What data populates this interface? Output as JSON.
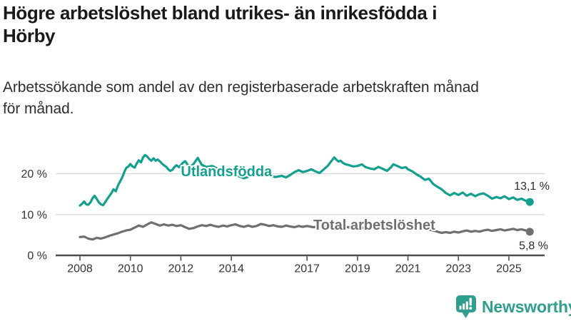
{
  "header": {
    "title": "Högre arbetslöshet bland utrikes- än inrikesfödda i Hörby",
    "title_lines": [
      "Högre arbetslöshet bland utrikes- än inrikesfödda i",
      "Hörby"
    ],
    "subtitle": "Arbetssökande som andel av den registerbaserade arbetskraften månad för månad.",
    "subtitle_lines": [
      "Arbetssökande som andel av den registerbaserade arbetskraften månad",
      "för månad."
    ]
  },
  "chart_data": {
    "type": "line",
    "title": "",
    "xlabel": "",
    "ylabel": "",
    "x_unit": "year (monthly observations)",
    "y_unit": "percent of registered labour force",
    "xlim": [
      2007.5,
      2026.5
    ],
    "ylim": [
      0,
      26
    ],
    "grid": "horizontal",
    "legend_position": "inline-labels",
    "x_ticks": [
      {
        "value": 2008,
        "label": "2008"
      },
      {
        "value": 2010,
        "label": "2010"
      },
      {
        "value": 2012,
        "label": "2012"
      },
      {
        "value": 2014,
        "label": "2014"
      },
      {
        "value": 2017,
        "label": "2017"
      },
      {
        "value": 2019,
        "label": "2019"
      },
      {
        "value": 2021,
        "label": "2021"
      },
      {
        "value": 2023,
        "label": "2023"
      },
      {
        "value": 2025,
        "label": "2025"
      }
    ],
    "y_ticks": [
      {
        "value": 0,
        "label": "0 %"
      },
      {
        "value": 10,
        "label": "10 %"
      },
      {
        "value": 20,
        "label": "20 %"
      }
    ],
    "series": [
      {
        "name": "Utlandsfödda",
        "color": "#13a08f",
        "end_value": 13.1,
        "end_label": "13,1 %",
        "label_anchor": {
          "x": 2012.0,
          "y": 19.4
        },
        "points": [
          [
            2008.0,
            12.2
          ],
          [
            2008.08,
            12.6
          ],
          [
            2008.17,
            13.2
          ],
          [
            2008.25,
            12.5
          ],
          [
            2008.33,
            12.4
          ],
          [
            2008.42,
            13.0
          ],
          [
            2008.5,
            14.0
          ],
          [
            2008.58,
            14.6
          ],
          [
            2008.67,
            13.8
          ],
          [
            2008.75,
            13.0
          ],
          [
            2008.83,
            12.5
          ],
          [
            2008.92,
            12.3
          ],
          [
            2009.0,
            13.0
          ],
          [
            2009.08,
            13.8
          ],
          [
            2009.17,
            14.6
          ],
          [
            2009.25,
            15.3
          ],
          [
            2009.33,
            16.2
          ],
          [
            2009.42,
            15.7
          ],
          [
            2009.5,
            17.0
          ],
          [
            2009.58,
            18.0
          ],
          [
            2009.67,
            19.0
          ],
          [
            2009.75,
            20.3
          ],
          [
            2009.83,
            21.4
          ],
          [
            2009.92,
            21.8
          ],
          [
            2010.0,
            22.4
          ],
          [
            2010.08,
            21.8
          ],
          [
            2010.17,
            21.5
          ],
          [
            2010.25,
            22.5
          ],
          [
            2010.33,
            23.3
          ],
          [
            2010.42,
            22.8
          ],
          [
            2010.5,
            24.0
          ],
          [
            2010.58,
            24.6
          ],
          [
            2010.67,
            24.2
          ],
          [
            2010.75,
            23.6
          ],
          [
            2010.83,
            23.2
          ],
          [
            2010.92,
            23.8
          ],
          [
            2011.0,
            23.2
          ],
          [
            2011.08,
            23.5
          ],
          [
            2011.17,
            23.0
          ],
          [
            2011.25,
            22.5
          ],
          [
            2011.33,
            22.1
          ],
          [
            2011.42,
            21.7
          ],
          [
            2011.5,
            21.1
          ],
          [
            2011.58,
            20.7
          ],
          [
            2011.67,
            21.0
          ],
          [
            2011.75,
            21.7
          ],
          [
            2011.83,
            22.1
          ],
          [
            2011.92,
            21.6
          ],
          [
            2012.0,
            22.1
          ],
          [
            2012.08,
            22.7
          ],
          [
            2012.17,
            23.1
          ],
          [
            2012.25,
            22.4
          ],
          [
            2012.33,
            21.7
          ],
          [
            2012.42,
            22.0
          ],
          [
            2012.5,
            22.4
          ],
          [
            2012.58,
            23.1
          ],
          [
            2012.67,
            23.9
          ],
          [
            2012.75,
            23.0
          ],
          [
            2012.83,
            22.2
          ],
          [
            2013.0,
            21.7
          ],
          [
            2013.25,
            21.9
          ],
          [
            2013.5,
            21.1
          ],
          [
            2013.75,
            20.5
          ],
          [
            2014.0,
            20.1
          ],
          [
            2014.25,
            19.5
          ],
          [
            2014.5,
            18.9
          ],
          [
            2014.75,
            19.4
          ],
          [
            2015.0,
            19.7
          ],
          [
            2015.25,
            20.0
          ],
          [
            2015.5,
            19.6
          ],
          [
            2015.75,
            19.2
          ],
          [
            2016.0,
            19.5
          ],
          [
            2016.17,
            19.1
          ],
          [
            2016.33,
            19.7
          ],
          [
            2016.5,
            20.4
          ],
          [
            2016.67,
            20.9
          ],
          [
            2016.83,
            20.4
          ],
          [
            2017.0,
            20.7
          ],
          [
            2017.17,
            21.1
          ],
          [
            2017.33,
            20.6
          ],
          [
            2017.5,
            20.2
          ],
          [
            2017.67,
            21.1
          ],
          [
            2017.83,
            22.0
          ],
          [
            2018.0,
            23.4
          ],
          [
            2018.08,
            24.0
          ],
          [
            2018.17,
            23.4
          ],
          [
            2018.25,
            23.0
          ],
          [
            2018.33,
            23.2
          ],
          [
            2018.42,
            22.7
          ],
          [
            2018.5,
            22.4
          ],
          [
            2018.67,
            22.1
          ],
          [
            2018.83,
            21.8
          ],
          [
            2019.0,
            21.9
          ],
          [
            2019.17,
            22.3
          ],
          [
            2019.33,
            21.6
          ],
          [
            2019.5,
            21.3
          ],
          [
            2019.67,
            21.1
          ],
          [
            2019.83,
            21.7
          ],
          [
            2020.0,
            21.2
          ],
          [
            2020.17,
            20.7
          ],
          [
            2020.33,
            21.6
          ],
          [
            2020.42,
            22.3
          ],
          [
            2020.58,
            21.9
          ],
          [
            2020.75,
            21.4
          ],
          [
            2020.92,
            21.6
          ],
          [
            2021.0,
            21.1
          ],
          [
            2021.17,
            20.6
          ],
          [
            2021.33,
            19.9
          ],
          [
            2021.5,
            19.3
          ],
          [
            2021.67,
            18.5
          ],
          [
            2021.83,
            18.8
          ],
          [
            2022.0,
            17.5
          ],
          [
            2022.17,
            16.8
          ],
          [
            2022.33,
            16.2
          ],
          [
            2022.5,
            15.3
          ],
          [
            2022.67,
            14.7
          ],
          [
            2022.83,
            15.3
          ],
          [
            2023.0,
            14.8
          ],
          [
            2023.17,
            15.4
          ],
          [
            2023.33,
            14.6
          ],
          [
            2023.5,
            15.1
          ],
          [
            2023.67,
            14.5
          ],
          [
            2023.83,
            15.0
          ],
          [
            2024.0,
            15.2
          ],
          [
            2024.17,
            14.6
          ],
          [
            2024.33,
            13.9
          ],
          [
            2024.5,
            14.3
          ],
          [
            2024.67,
            14.0
          ],
          [
            2024.83,
            14.5
          ],
          [
            2025.0,
            13.8
          ],
          [
            2025.17,
            14.2
          ],
          [
            2025.33,
            13.6
          ],
          [
            2025.5,
            13.9
          ],
          [
            2025.67,
            13.4
          ],
          [
            2025.83,
            13.1
          ]
        ]
      },
      {
        "name": "Total arbetslöshet",
        "color": "#6f6f6f",
        "end_value": 5.8,
        "end_label": "5,8 %",
        "label_anchor": {
          "x": 2017.25,
          "y": 6.3
        },
        "points": [
          [
            2008.0,
            4.5
          ],
          [
            2008.17,
            4.6
          ],
          [
            2008.33,
            4.1
          ],
          [
            2008.5,
            3.9
          ],
          [
            2008.67,
            4.3
          ],
          [
            2008.83,
            4.1
          ],
          [
            2009.0,
            4.4
          ],
          [
            2009.17,
            4.8
          ],
          [
            2009.33,
            5.1
          ],
          [
            2009.5,
            5.4
          ],
          [
            2009.67,
            5.8
          ],
          [
            2009.83,
            6.1
          ],
          [
            2010.0,
            6.3
          ],
          [
            2010.17,
            6.8
          ],
          [
            2010.33,
            7.3
          ],
          [
            2010.5,
            7.0
          ],
          [
            2010.67,
            7.6
          ],
          [
            2010.83,
            8.1
          ],
          [
            2011.0,
            7.7
          ],
          [
            2011.17,
            7.3
          ],
          [
            2011.33,
            7.6
          ],
          [
            2011.5,
            7.3
          ],
          [
            2011.67,
            7.5
          ],
          [
            2011.83,
            7.2
          ],
          [
            2012.0,
            7.4
          ],
          [
            2012.17,
            6.9
          ],
          [
            2012.33,
            6.5
          ],
          [
            2012.5,
            6.7
          ],
          [
            2012.67,
            7.1
          ],
          [
            2012.83,
            7.4
          ],
          [
            2013.0,
            7.2
          ],
          [
            2013.17,
            7.5
          ],
          [
            2013.33,
            7.2
          ],
          [
            2013.5,
            7.0
          ],
          [
            2013.67,
            7.3
          ],
          [
            2013.83,
            7.1
          ],
          [
            2014.0,
            7.4
          ],
          [
            2014.17,
            7.6
          ],
          [
            2014.33,
            7.2
          ],
          [
            2014.5,
            7.0
          ],
          [
            2014.67,
            7.3
          ],
          [
            2014.83,
            7.0
          ],
          [
            2015.0,
            7.2
          ],
          [
            2015.17,
            7.7
          ],
          [
            2015.33,
            7.5
          ],
          [
            2015.5,
            7.2
          ],
          [
            2015.67,
            7.4
          ],
          [
            2015.83,
            7.1
          ],
          [
            2016.0,
            7.0
          ],
          [
            2016.17,
            7.3
          ],
          [
            2016.33,
            7.1
          ],
          [
            2016.5,
            6.9
          ],
          [
            2016.67,
            7.2
          ],
          [
            2016.83,
            7.0
          ],
          [
            2017.0,
            7.2
          ],
          [
            2017.25,
            6.9
          ],
          [
            2017.5,
            7.1
          ],
          [
            2017.75,
            6.9
          ],
          [
            2018.0,
            7.0
          ],
          [
            2018.25,
            6.8
          ],
          [
            2018.5,
            7.0
          ],
          [
            2018.75,
            6.8
          ],
          [
            2019.0,
            6.9
          ],
          [
            2019.25,
            6.7
          ],
          [
            2019.5,
            6.9
          ],
          [
            2019.75,
            7.0
          ],
          [
            2020.0,
            7.1
          ],
          [
            2020.25,
            7.6
          ],
          [
            2020.5,
            7.9
          ],
          [
            2020.75,
            7.6
          ],
          [
            2021.0,
            7.4
          ],
          [
            2021.25,
            7.1
          ],
          [
            2021.5,
            6.8
          ],
          [
            2021.75,
            6.4
          ],
          [
            2022.0,
            6.1
          ],
          [
            2022.17,
            5.8
          ],
          [
            2022.33,
            5.5
          ],
          [
            2022.5,
            5.7
          ],
          [
            2022.67,
            5.5
          ],
          [
            2022.83,
            5.8
          ],
          [
            2023.0,
            5.6
          ],
          [
            2023.17,
            5.9
          ],
          [
            2023.33,
            6.1
          ],
          [
            2023.5,
            5.8
          ],
          [
            2023.67,
            6.0
          ],
          [
            2023.83,
            5.8
          ],
          [
            2024.0,
            6.1
          ],
          [
            2024.17,
            6.3
          ],
          [
            2024.33,
            6.0
          ],
          [
            2024.5,
            6.2
          ],
          [
            2024.67,
            6.4
          ],
          [
            2024.83,
            6.1
          ],
          [
            2025.0,
            6.3
          ],
          [
            2025.17,
            6.5
          ],
          [
            2025.33,
            6.2
          ],
          [
            2025.5,
            6.4
          ],
          [
            2025.67,
            6.1
          ],
          [
            2025.83,
            5.8
          ]
        ]
      }
    ],
    "colors": {
      "grid": "#d9d9d9",
      "axis": "#4d4d4d",
      "tick_text": "#333333",
      "value_label_text": "#2b2b2b"
    }
  },
  "footer": {
    "brand": "Newsworthy",
    "brand_color": "#2f9e8e",
    "logo_icon": "newsworthy-bubble-bar-chart-icon"
  }
}
